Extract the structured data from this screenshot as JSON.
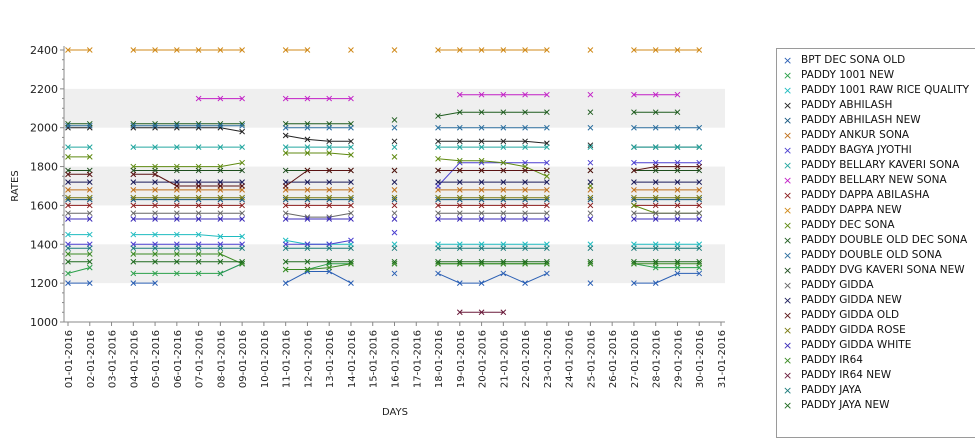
{
  "chart_data": {
    "type": "line",
    "xlabel": "DAYS",
    "ylabel": "RATES",
    "ylim": [
      1000,
      2400
    ],
    "yticks": [
      1000,
      1200,
      1400,
      1600,
      1800,
      2000,
      2200,
      2400
    ],
    "categories": [
      "01-01-2016",
      "02-01-2016",
      "03-01-2016",
      "04-01-2016",
      "05-01-2016",
      "06-01-2016",
      "07-01-2016",
      "08-01-2016",
      "09-01-2016",
      "10-01-2016",
      "11-01-2016",
      "12-01-2016",
      "13-01-2016",
      "14-01-2016",
      "15-01-2016",
      "16-01-2016",
      "17-01-2016",
      "18-01-2016",
      "19-01-2016",
      "20-01-2016",
      "21-01-2016",
      "22-01-2016",
      "23-01-2016",
      "24-01-2016",
      "25-01-2016",
      "26-01-2016",
      "27-01-2016",
      "28-01-2016",
      "29-01-2016",
      "30-01-2016",
      "31-01-2016"
    ],
    "grid": "alternating horizontal bands",
    "legend_position": "right",
    "series": [
      {
        "name": "BPT DEC SONA OLD",
        "color": "#2a5fb4",
        "values": [
          1200,
          1200,
          null,
          1200,
          1200,
          null,
          null,
          1250,
          1300,
          null,
          1200,
          1260,
          1260,
          1200,
          null,
          1250,
          null,
          1250,
          1200,
          1200,
          1250,
          1200,
          1250,
          null,
          1200,
          null,
          1200,
          1200,
          1250,
          1250,
          null
        ]
      },
      {
        "name": "PADDY 1001 NEW",
        "color": "#2aa049",
        "values": [
          1250,
          1280,
          null,
          1250,
          1250,
          1250,
          1250,
          1250,
          1300,
          null,
          1270,
          1270,
          1300,
          1300,
          null,
          1300,
          null,
          1300,
          1300,
          1300,
          1300,
          1300,
          1300,
          null,
          1300,
          null,
          1300,
          1280,
          1280,
          1280,
          null
        ]
      },
      {
        "name": "PADDY 1001 RAW RICE QUALITY",
        "color": "#1fbcc0",
        "values": [
          1450,
          1450,
          null,
          1450,
          1450,
          1450,
          1450,
          1440,
          1440,
          null,
          1420,
          1400,
          1400,
          1400,
          null,
          1400,
          null,
          1400,
          1400,
          1400,
          1400,
          1400,
          1400,
          null,
          1400,
          null,
          1400,
          1400,
          1400,
          1400,
          null
        ]
      },
      {
        "name": "PADDY ABHILASH",
        "color": "#222222",
        "values": [
          2000,
          2000,
          null,
          2000,
          2000,
          2000,
          2000,
          2000,
          1980,
          null,
          1960,
          1940,
          1930,
          1930,
          null,
          1930,
          null,
          1930,
          1930,
          1930,
          1930,
          1930,
          1920,
          null,
          1910,
          null,
          1900,
          1900,
          1900,
          1900,
          null
        ]
      },
      {
        "name": "PADDY ABHILASH NEW",
        "color": "#14567f",
        "values": [
          1630,
          1630,
          null,
          1630,
          1630,
          1630,
          1630,
          1630,
          1630,
          null,
          1630,
          1630,
          1630,
          1630,
          null,
          1630,
          null,
          1630,
          1630,
          1630,
          1630,
          1630,
          1630,
          null,
          1630,
          null,
          1630,
          1630,
          1630,
          1630,
          null
        ]
      },
      {
        "name": "PADDY ANKUR SONA",
        "color": "#c0701a",
        "values": [
          1680,
          1680,
          null,
          1680,
          1680,
          1680,
          1680,
          1680,
          1680,
          null,
          1680,
          1680,
          1680,
          1680,
          null,
          1680,
          null,
          1680,
          1680,
          1680,
          1680,
          1680,
          1680,
          null,
          1680,
          null,
          1680,
          1680,
          1680,
          1680,
          null
        ]
      },
      {
        "name": "PADDY BAGYA JYOTHI",
        "color": "#4b3fd0",
        "values": [
          1400,
          1400,
          null,
          1400,
          1400,
          1400,
          1400,
          1400,
          1400,
          null,
          1400,
          1400,
          1400,
          1420,
          null,
          1460,
          null,
          1700,
          1820,
          1820,
          1820,
          1820,
          1820,
          null,
          1820,
          null,
          1820,
          1820,
          1820,
          1820,
          null
        ]
      },
      {
        "name": "PADDY BELLARY KAVERI SONA",
        "color": "#24a7a0",
        "values": [
          1900,
          1900,
          null,
          1900,
          1900,
          1900,
          1900,
          1900,
          1900,
          null,
          1900,
          1900,
          1900,
          1900,
          null,
          1900,
          null,
          1900,
          1900,
          1900,
          1900,
          1900,
          1900,
          null,
          1900,
          null,
          1900,
          1900,
          1900,
          1900,
          null
        ]
      },
      {
        "name": "PADDY BELLARY NEW SONA",
        "color": "#c21fc6",
        "values": [
          null,
          null,
          null,
          null,
          null,
          null,
          2150,
          2150,
          2150,
          null,
          2150,
          2150,
          2150,
          2150,
          null,
          null,
          null,
          null,
          2170,
          2170,
          2170,
          2170,
          2170,
          null,
          2170,
          null,
          2170,
          2170,
          2170,
          null,
          null
        ]
      },
      {
        "name": "PADDY DAPPA ABILASHA",
        "color": "#8b1a1a",
        "values": [
          1600,
          1600,
          null,
          1600,
          1600,
          1600,
          1600,
          1600,
          1600,
          null,
          1600,
          1600,
          1600,
          1600,
          null,
          1600,
          null,
          1600,
          1600,
          1600,
          1600,
          1600,
          1600,
          null,
          1600,
          null,
          1600,
          1600,
          1600,
          1600,
          null
        ]
      },
      {
        "name": "PADDY DAPPA NEW",
        "color": "#d08a1a",
        "values": [
          2400,
          2400,
          null,
          2400,
          2400,
          2400,
          2400,
          2400,
          2400,
          null,
          2400,
          2400,
          null,
          2400,
          null,
          2400,
          null,
          2400,
          2400,
          2400,
          2400,
          2400,
          2400,
          null,
          2400,
          null,
          2400,
          2400,
          2400,
          2400,
          null
        ]
      },
      {
        "name": "PADDY DEC SONA",
        "color": "#5f8a10",
        "values": [
          1850,
          1850,
          null,
          1800,
          1800,
          1800,
          1800,
          1800,
          1820,
          null,
          1870,
          1870,
          1870,
          1860,
          null,
          1850,
          null,
          1840,
          1830,
          1830,
          1820,
          1800,
          1750,
          null,
          1700,
          null,
          1600,
          1560,
          1560,
          1560,
          null
        ]
      },
      {
        "name": "PADDY DOUBLE OLD DEC SONA",
        "color": "#1e5c1e",
        "values": [
          2020,
          2020,
          null,
          2020,
          2020,
          2020,
          2020,
          2020,
          2020,
          null,
          2020,
          2020,
          2020,
          2020,
          null,
          2040,
          null,
          2060,
          2080,
          2080,
          2080,
          2080,
          2080,
          null,
          2080,
          null,
          2080,
          2080,
          2080,
          null,
          null
        ]
      },
      {
        "name": "PADDY DOUBLE OLD SONA",
        "color": "#2b6e9e",
        "values": [
          2010,
          2010,
          null,
          2010,
          2010,
          2010,
          2010,
          2010,
          2010,
          null,
          2000,
          2000,
          2000,
          2000,
          null,
          2000,
          null,
          2000,
          2000,
          2000,
          2000,
          2000,
          2000,
          null,
          2000,
          null,
          2000,
          2000,
          2000,
          2000,
          null
        ]
      },
      {
        "name": "PADDY DVG KAVERI SONA NEW",
        "color": "#1d4d1d",
        "values": [
          1780,
          1780,
          null,
          1780,
          1780,
          1780,
          1780,
          1780,
          1780,
          null,
          1780,
          1780,
          1780,
          1780,
          null,
          1780,
          null,
          1780,
          1780,
          1780,
          1780,
          1780,
          1780,
          null,
          1780,
          null,
          1780,
          1780,
          1780,
          1780,
          null
        ]
      },
      {
        "name": "PADDY GIDDA",
        "color": "#666666",
        "values": [
          1560,
          1560,
          null,
          1560,
          1560,
          1560,
          1560,
          1560,
          1560,
          null,
          1560,
          1540,
          1540,
          1560,
          null,
          1560,
          null,
          1560,
          1560,
          1560,
          1560,
          1560,
          1560,
          null,
          1560,
          null,
          1560,
          1560,
          1560,
          1560,
          null
        ]
      },
      {
        "name": "PADDY GIDDA NEW",
        "color": "#1a1a5a",
        "values": [
          1720,
          1720,
          null,
          1720,
          1720,
          1720,
          1720,
          1720,
          1720,
          null,
          1720,
          1720,
          1720,
          1720,
          null,
          1720,
          null,
          1720,
          1720,
          1720,
          1720,
          1720,
          1720,
          null,
          1720,
          null,
          1720,
          1720,
          1720,
          1720,
          null
        ]
      },
      {
        "name": "PADDY GIDDA OLD",
        "color": "#5a1212",
        "values": [
          1760,
          1760,
          null,
          1760,
          1760,
          1700,
          1700,
          1700,
          1700,
          null,
          1700,
          1780,
          1780,
          1780,
          null,
          1780,
          null,
          1780,
          1780,
          1780,
          1780,
          1780,
          1780,
          null,
          1780,
          null,
          1780,
          1800,
          1800,
          1800,
          null
        ]
      },
      {
        "name": "PADDY GIDDA ROSE",
        "color": "#7a7a10",
        "values": [
          1640,
          1640,
          null,
          1640,
          1640,
          1640,
          1640,
          1640,
          1640,
          null,
          1640,
          1640,
          1640,
          1640,
          null,
          1640,
          null,
          1640,
          1640,
          1640,
          1640,
          1640,
          1640,
          null,
          1640,
          null,
          1640,
          1640,
          1640,
          1640,
          null
        ]
      },
      {
        "name": "PADDY GIDDA WHITE",
        "color": "#3a2ab8",
        "values": [
          1530,
          1530,
          null,
          1530,
          1530,
          1530,
          1530,
          1530,
          1530,
          null,
          1530,
          1530,
          1530,
          1530,
          null,
          1530,
          null,
          1530,
          1530,
          1530,
          1530,
          1530,
          1530,
          null,
          1530,
          null,
          1530,
          1530,
          1530,
          1530,
          null
        ]
      },
      {
        "name": "PADDY IR64",
        "color": "#3a8a22",
        "values": [
          1350,
          1350,
          null,
          1350,
          1350,
          1350,
          1350,
          1350,
          1300,
          null,
          1270,
          1270,
          1280,
          1300,
          null,
          1300,
          null,
          1300,
          1300,
          1300,
          1300,
          1300,
          1300,
          null,
          1300,
          null,
          1300,
          1300,
          1300,
          1300,
          null
        ]
      },
      {
        "name": "PADDY IR64 NEW",
        "color": "#6a1a3a",
        "values": [
          null,
          null,
          null,
          null,
          null,
          null,
          null,
          null,
          null,
          null,
          null,
          null,
          null,
          null,
          null,
          null,
          null,
          null,
          1050,
          1050,
          1050,
          null,
          null,
          null,
          null,
          null,
          null,
          null,
          null,
          null,
          null
        ]
      },
      {
        "name": "PADDY JAYA",
        "color": "#1a7a7a",
        "values": [
          1380,
          1380,
          null,
          1380,
          1380,
          1380,
          1380,
          1380,
          1380,
          null,
          1380,
          1380,
          1380,
          1380,
          null,
          1380,
          null,
          1380,
          1380,
          1380,
          1380,
          1380,
          1380,
          null,
          1380,
          null,
          1380,
          1380,
          1380,
          1380,
          null
        ]
      },
      {
        "name": "PADDY JAYA NEW",
        "color": "#1e6a1e",
        "values": [
          1310,
          1310,
          null,
          1310,
          1310,
          1310,
          1310,
          1310,
          1310,
          null,
          1310,
          1310,
          1310,
          1310,
          null,
          1310,
          null,
          1310,
          1310,
          1310,
          1310,
          1310,
          1310,
          null,
          1310,
          null,
          1310,
          1310,
          1310,
          1310,
          null
        ]
      }
    ]
  }
}
